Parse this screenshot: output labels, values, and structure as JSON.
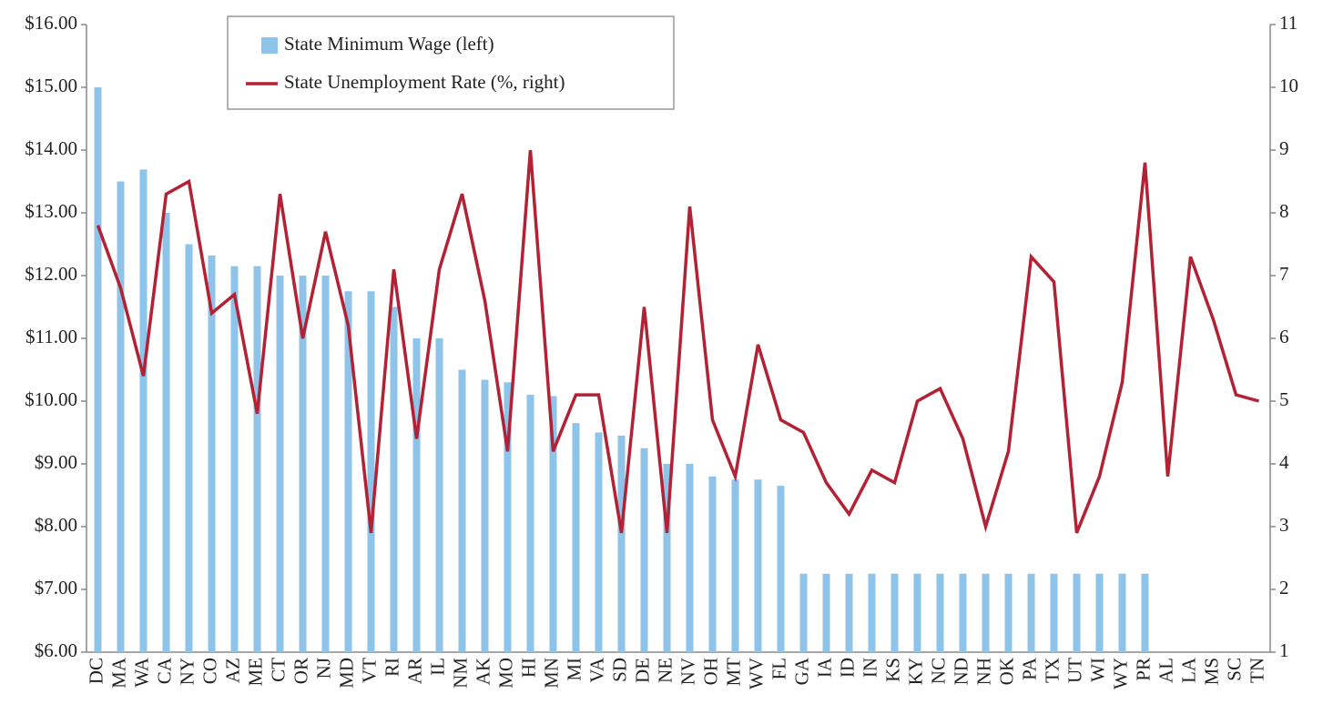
{
  "chart_data": {
    "type": "bar-line",
    "categories": [
      "DC",
      "MA",
      "WA",
      "CA",
      "NY",
      "CO",
      "AZ",
      "ME",
      "CT",
      "OR",
      "NJ",
      "MD",
      "VT",
      "RI",
      "AR",
      "IL",
      "NM",
      "AK",
      "MO",
      "HI",
      "MN",
      "MI",
      "VA",
      "SD",
      "DE",
      "NE",
      "NV",
      "OH",
      "MT",
      "WV",
      "FL",
      "GA",
      "IA",
      "ID",
      "IN",
      "KS",
      "KY",
      "NC",
      "ND",
      "NH",
      "OK",
      "PA",
      "TX",
      "UT",
      "WI",
      "WY",
      "PR",
      "AL",
      "LA",
      "MS",
      "SC",
      "TN"
    ],
    "series": [
      {
        "name": "State Minimum Wage (left)",
        "type": "bar",
        "color": "#8ec3ea",
        "values": [
          15,
          13.5,
          13.69,
          13,
          12.5,
          12.32,
          12.15,
          12.15,
          12,
          12,
          12,
          11.75,
          11.75,
          11.5,
          11,
          11,
          10.5,
          10.34,
          10.3,
          10.1,
          10.08,
          9.65,
          9.5,
          9.45,
          9.25,
          9,
          9,
          8.8,
          8.75,
          8.75,
          8.65,
          7.25,
          7.25,
          7.25,
          7.25,
          7.25,
          7.25,
          7.25,
          7.25,
          7.25,
          7.25,
          7.25,
          7.25,
          7.25,
          7.25,
          7.25,
          7.25,
          null,
          null,
          null,
          null,
          null
        ]
      },
      {
        "name": "State Unemployment Rate (%, right)",
        "type": "line",
        "axis": "y2",
        "color": "#b22234",
        "values": [
          7.8,
          6.8,
          5.4,
          8.3,
          8.5,
          6.4,
          6.7,
          4.8,
          8.3,
          6.0,
          7.7,
          6.2,
          2.9,
          7.1,
          4.4,
          7.1,
          8.3,
          6.6,
          4.2,
          9.0,
          4.2,
          5.1,
          5.1,
          2.9,
          6.5,
          2.9,
          8.1,
          4.7,
          3.8,
          5.9,
          4.7,
          4.5,
          3.7,
          3.2,
          3.9,
          3.7,
          5.0,
          5.2,
          4.4,
          3.0,
          4.2,
          7.3,
          6.9,
          2.9,
          3.8,
          5.3,
          8.8,
          3.8,
          7.3,
          6.3,
          5.1,
          5.0
        ]
      }
    ],
    "ylim": [
      6,
      16
    ],
    "yticks": [
      {
        "value": 6,
        "label": "$6.00"
      },
      {
        "value": 7,
        "label": "$7.00"
      },
      {
        "value": 8,
        "label": "$8.00"
      },
      {
        "value": 9,
        "label": "$9.00"
      },
      {
        "value": 10,
        "label": "$10.00"
      },
      {
        "value": 11,
        "label": "$11.00"
      },
      {
        "value": 12,
        "label": "$12.00"
      },
      {
        "value": 13,
        "label": "$13.00"
      },
      {
        "value": 14,
        "label": "$14.00"
      },
      {
        "value": 15,
        "label": "$15.00"
      },
      {
        "value": 16,
        "label": "$16.00"
      }
    ],
    "y2lim": [
      1,
      11
    ],
    "y2ticks": [
      1,
      2,
      3,
      4,
      5,
      6,
      7,
      8,
      9,
      10,
      11
    ],
    "grid": false,
    "legend": "top-left"
  }
}
